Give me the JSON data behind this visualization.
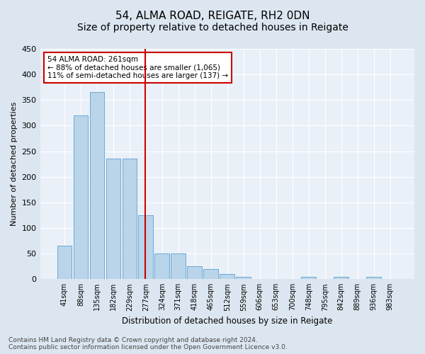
{
  "title": "54, ALMA ROAD, REIGATE, RH2 0DN",
  "subtitle": "Size of property relative to detached houses in Reigate",
  "xlabel": "Distribution of detached houses by size in Reigate",
  "ylabel": "Number of detached properties",
  "categories": [
    "41sqm",
    "88sqm",
    "135sqm",
    "182sqm",
    "229sqm",
    "277sqm",
    "324sqm",
    "371sqm",
    "418sqm",
    "465sqm",
    "512sqm",
    "559sqm",
    "606sqm",
    "653sqm",
    "700sqm",
    "748sqm",
    "795sqm",
    "842sqm",
    "889sqm",
    "936sqm",
    "983sqm"
  ],
  "values": [
    65,
    320,
    365,
    235,
    235,
    125,
    50,
    50,
    25,
    20,
    10,
    5,
    0,
    0,
    0,
    5,
    0,
    5,
    0,
    5,
    0
  ],
  "bar_color": "#bad4ea",
  "bar_edge_color": "#6aaad4",
  "vline_x_index": 5,
  "vline_color": "#cc0000",
  "annotation_text": "54 ALMA ROAD: 261sqm\n← 88% of detached houses are smaller (1,065)\n11% of semi-detached houses are larger (137) →",
  "annotation_box_color": "#ffffff",
  "annotation_box_edge": "#cc0000",
  "ylim": [
    0,
    450
  ],
  "yticks": [
    0,
    50,
    100,
    150,
    200,
    250,
    300,
    350,
    400,
    450
  ],
  "bg_color": "#dce6f0",
  "plot_bg_color": "#eaf0f8",
  "footer": "Contains HM Land Registry data © Crown copyright and database right 2024.\nContains public sector information licensed under the Open Government Licence v3.0.",
  "title_fontsize": 11,
  "subtitle_fontsize": 10,
  "xlabel_fontsize": 8.5,
  "ylabel_fontsize": 8,
  "tick_fontsize": 8,
  "xtick_fontsize": 7,
  "footer_fontsize": 6.5
}
